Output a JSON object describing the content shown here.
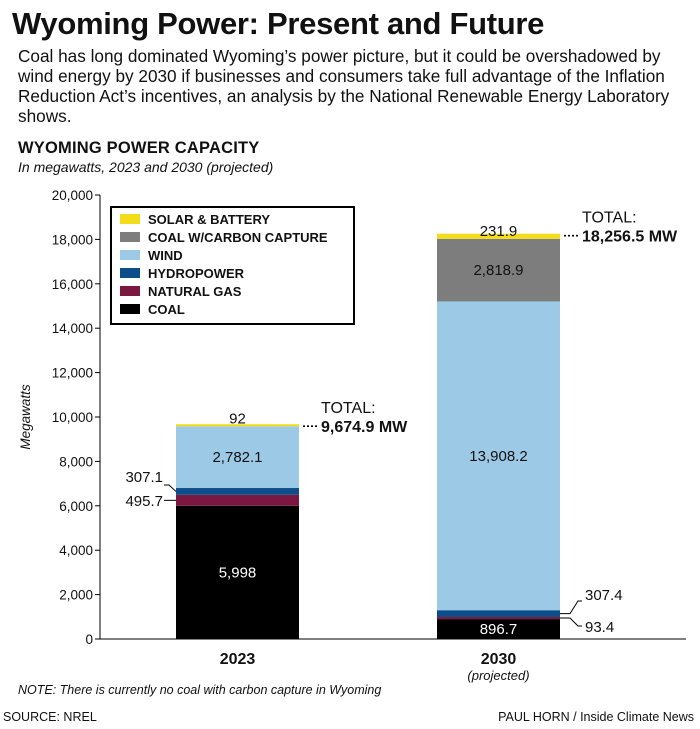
{
  "header": {
    "title": "Wyoming Power: Present and Future",
    "dek": "Coal has long dominated Wyoming’s power picture, but it could be overshadowed by wind energy by 2030 if businesses and consumers take full advantage of the Inflation Reduction Act’s incentives, an analysis by the National Renewable Energy Laboratory shows."
  },
  "chart_data": {
    "type": "bar",
    "stacked": true,
    "title": "WYOMING POWER CAPACITY",
    "subtitle": "In megawatts, 2023 and 2030 (projected)",
    "xlabel": "",
    "ylabel": "Megawatts",
    "ylim": [
      0,
      20000
    ],
    "yticks": [
      0,
      2000,
      4000,
      6000,
      8000,
      10000,
      12000,
      14000,
      16000,
      18000,
      20000
    ],
    "ytick_labels": [
      "0",
      "2,000",
      "4,000",
      "6,000",
      "8,000",
      "10,000",
      "12,000",
      "14,000",
      "16,000",
      "18,000",
      "20,000"
    ],
    "grid": false,
    "legend_position": "top-left",
    "categories": [
      "2023",
      "2030"
    ],
    "category_sublabels": [
      "",
      "(projected)"
    ],
    "series": [
      {
        "name": "COAL",
        "color": "#000000",
        "values": [
          5998,
          896.7
        ],
        "labels": [
          "5,998",
          "896.7"
        ]
      },
      {
        "name": "NATURAL GAS",
        "color": "#7a1842",
        "values": [
          495.7,
          93.4
        ],
        "labels": [
          "495.7",
          "93.4"
        ]
      },
      {
        "name": "HYDROPOWER",
        "color": "#0d4e8a",
        "values": [
          307.1,
          307.4
        ],
        "labels": [
          "307.1",
          "307.4"
        ]
      },
      {
        "name": "WIND",
        "color": "#9ccae6",
        "values": [
          2782.1,
          13908.2
        ],
        "labels": [
          "2,782.1",
          "13,908.2"
        ]
      },
      {
        "name": "COAL W/CARBON CAPTURE",
        "color": "#7d7d7d",
        "values": [
          0,
          2818.9
        ],
        "labels": [
          "",
          "2,818.9"
        ]
      },
      {
        "name": "SOLAR & BATTERY",
        "color": "#f3dc1a",
        "values": [
          92,
          231.9
        ],
        "labels": [
          "92",
          "231.9"
        ]
      }
    ],
    "legend_order": [
      "SOLAR & BATTERY",
      "COAL W/CARBON CAPTURE",
      "WIND",
      "HYDROPOWER",
      "NATURAL GAS",
      "COAL"
    ],
    "totals": [
      {
        "label": "TOTAL:",
        "value": 9674.9,
        "text": "9,674.9 MW"
      },
      {
        "label": "TOTAL:",
        "value": 18256.5,
        "text": "18,256.5 MW"
      }
    ]
  },
  "footer": {
    "note": "NOTE: There is currently no coal with carbon capture in Wyoming",
    "source": "SOURCE: NREL",
    "credit": "PAUL HORN / Inside Climate News"
  }
}
